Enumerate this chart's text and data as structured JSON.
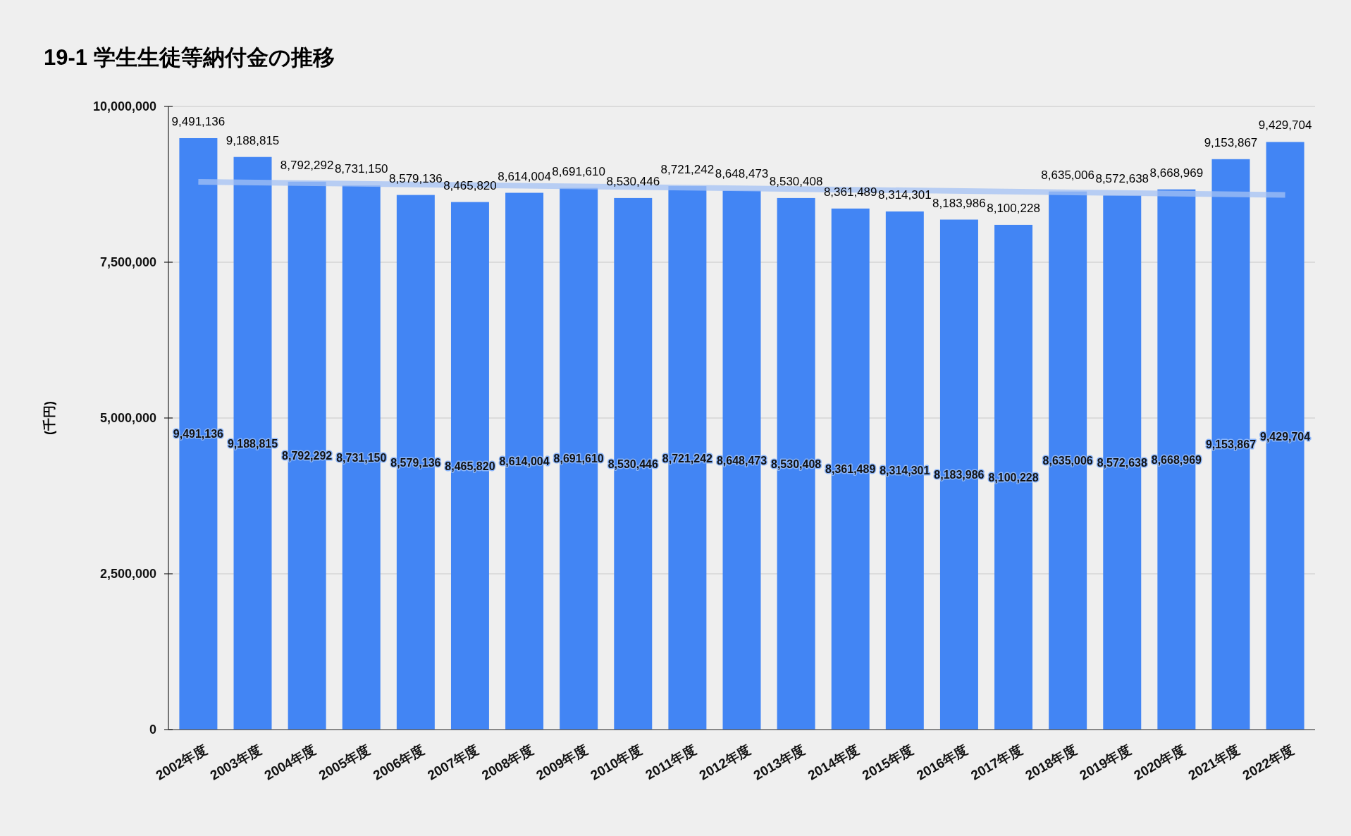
{
  "chart_data": {
    "type": "bar",
    "title": "19-1 学生生徒等納付金の推移",
    "ylabel": "(千円)",
    "categories": [
      "2002年度",
      "2003年度",
      "2004年度",
      "2005年度",
      "2006年度",
      "2007年度",
      "2008年度",
      "2009年度",
      "2010年度",
      "2011年度",
      "2012年度",
      "2013年度",
      "2014年度",
      "2015年度",
      "2016年度",
      "2017年度",
      "2018年度",
      "2019年度",
      "2020年度",
      "2021年度",
      "2022年度"
    ],
    "series": [
      {
        "color": "#4285f4",
        "values": [
          9491136,
          9188815,
          8792292,
          8731150,
          8579136,
          8465820,
          8614004,
          8691610,
          8530446,
          8721242,
          8648473,
          8530408,
          8361489,
          8314301,
          8183986,
          8100228,
          8635006,
          8572638,
          8668969,
          9153867,
          9429704
        ],
        "value_labels": [
          "9,491,136",
          "9,188,815",
          "8,792,292",
          "8,731,150",
          "8,579,136",
          "8,465,820",
          "8,614,004",
          "8,691,610",
          "8,530,446",
          "8,721,242",
          "8,648,473",
          "8,530,408",
          "8,361,489",
          "8,314,301",
          "8,183,986",
          "8,100,228",
          "8,635,006",
          "8,572,638",
          "8,668,969",
          "9,153,867",
          "9,429,704"
        ]
      },
      {
        "type": "line",
        "color": "#a4c2f4",
        "x": [
          "2002年度",
          "2022年度"
        ],
        "values": [
          8790000,
          8580000
        ]
      }
    ],
    "ylim": [
      0,
      10000000
    ],
    "yticks": [
      {
        "value": 0,
        "label": "0"
      },
      {
        "value": 2500000,
        "label": "2,500,000"
      },
      {
        "value": 5000000,
        "label": "5,000,000"
      },
      {
        "value": 7500000,
        "label": "7,500,000"
      },
      {
        "value": 10000000,
        "label": "10,000,000"
      }
    ],
    "grid": "y",
    "annotations": [
      {
        "text": "9,491,136",
        "x": "2002年度",
        "y": 4750000
      },
      {
        "text": "9,188,815",
        "x": "2003年度",
        "y": 4590000
      },
      {
        "text": "8,792,292",
        "x": "2004年度",
        "y": 4400000
      },
      {
        "text": "8,731,150",
        "x": "2005年度",
        "y": 4370000
      },
      {
        "text": "8,579,136",
        "x": "2006年度",
        "y": 4290000
      },
      {
        "text": "8,465,820",
        "x": "2007年度",
        "y": 4230000
      },
      {
        "text": "8,614,004",
        "x": "2008年度",
        "y": 4310000
      },
      {
        "text": "8,691,610",
        "x": "2009年度",
        "y": 4350000
      },
      {
        "text": "8,530,446",
        "x": "2010年度",
        "y": 4270000
      },
      {
        "text": "8,721,242",
        "x": "2011年度",
        "y": 4360000
      },
      {
        "text": "8,648,473",
        "x": "2012年度",
        "y": 4320000
      },
      {
        "text": "8,530,408",
        "x": "2013年度",
        "y": 4270000
      },
      {
        "text": "8,361,489",
        "x": "2014年度",
        "y": 4180000
      },
      {
        "text": "8,314,301",
        "x": "2015年度",
        "y": 4160000
      },
      {
        "text": "8,183,986",
        "x": "2016年度",
        "y": 4090000
      },
      {
        "text": "8,100,228",
        "x": "2017年度",
        "y": 4050000
      },
      {
        "text": "8,635,006",
        "x": "2018年度",
        "y": 4320000
      },
      {
        "text": "8,572,638",
        "x": "2019年度",
        "y": 4290000
      },
      {
        "text": "8,668,969",
        "x": "2020年度",
        "y": 4330000
      },
      {
        "text": "9,153,867",
        "x": "2021年度",
        "y": 4580000
      },
      {
        "text": "9,429,704",
        "x": "2022年度",
        "y": 4710000
      }
    ]
  }
}
